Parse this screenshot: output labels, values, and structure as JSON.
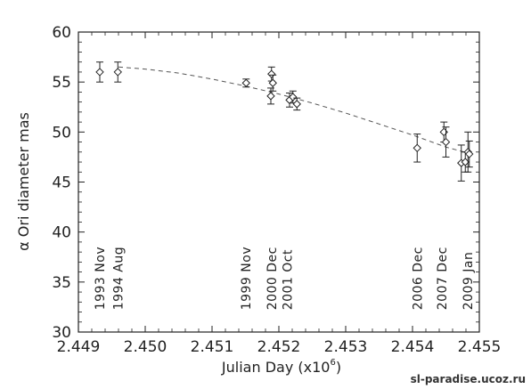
{
  "watermark": "sl-paradise.ucoz.ru",
  "chart_data": {
    "type": "scatter",
    "xlabel": "Julian Day (x10",
    "xlabel_exponent": "6",
    "xlabel_close": ")",
    "ylabel": "α Ori diameter mas",
    "xlim": [
      2.449,
      2.455
    ],
    "ylim": [
      30,
      60
    ],
    "x_ticks": [
      "2.449",
      "2.450",
      "2.451",
      "2.452",
      "2.453",
      "2.454",
      "2.455"
    ],
    "y_ticks": [
      "30",
      "35",
      "40",
      "45",
      "50",
      "55",
      "60"
    ],
    "grid": false,
    "epoch_labels": [
      {
        "label": "1993 Nov",
        "x": 2.44932
      },
      {
        "label": "1994 Aug",
        "x": 2.44959
      },
      {
        "label": "1999 Nov",
        "x": 2.45151
      },
      {
        "label": "2000 Dec",
        "x": 2.45189
      },
      {
        "label": "2001 Oct",
        "x": 2.45213
      },
      {
        "label": "2006 Dec",
        "x": 2.45407
      },
      {
        "label": "2007 Dec",
        "x": 2.45444
      },
      {
        "label": "2009 Jan",
        "x": 2.45483
      }
    ],
    "points": [
      {
        "x": 2.44932,
        "y": 56.0,
        "err": 1.0
      },
      {
        "x": 2.44959,
        "y": 56.0,
        "err": 1.0
      },
      {
        "x": 2.45151,
        "y": 54.9,
        "err": 0.4
      },
      {
        "x": 2.45188,
        "y": 53.6,
        "err": 0.8
      },
      {
        "x": 2.45189,
        "y": 55.8,
        "err": 0.7
      },
      {
        "x": 2.45191,
        "y": 54.9,
        "err": 0.8
      },
      {
        "x": 2.45216,
        "y": 53.2,
        "err": 0.7
      },
      {
        "x": 2.45221,
        "y": 53.5,
        "err": 0.6
      },
      {
        "x": 2.45227,
        "y": 52.8,
        "err": 0.6
      },
      {
        "x": 2.45407,
        "y": 48.4,
        "err": 1.4
      },
      {
        "x": 2.45447,
        "y": 50.0,
        "err": 1.0
      },
      {
        "x": 2.4545,
        "y": 49.0,
        "err": 1.5
      },
      {
        "x": 2.45473,
        "y": 46.9,
        "err": 1.8
      },
      {
        "x": 2.45479,
        "y": 47.0,
        "err": 1.0
      },
      {
        "x": 2.45483,
        "y": 48.0,
        "err": 2.0
      },
      {
        "x": 2.45485,
        "y": 47.8,
        "err": 1.3
      }
    ],
    "fit_curve": {
      "style": "dashed",
      "x": [
        2.4496,
        2.45,
        2.4505,
        2.451,
        2.4515,
        2.452,
        2.4525,
        2.453,
        2.4535,
        2.454,
        2.4545,
        2.45483
      ],
      "y": [
        56.5,
        56.3,
        55.9,
        55.3,
        54.6,
        53.8,
        52.9,
        51.9,
        50.8,
        49.7,
        48.5,
        47.9
      ]
    }
  }
}
